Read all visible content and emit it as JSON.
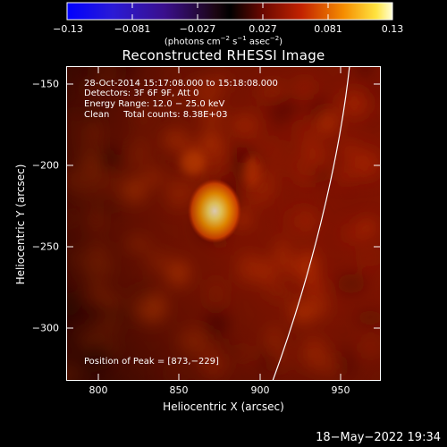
{
  "colorbar": {
    "ticks": [
      "−0.13",
      "−0.081",
      "−0.027",
      "0.027",
      "0.081",
      "0.13"
    ],
    "units_main": "(photons cm",
    "units_sup1": "−2",
    "units_s": " s",
    "units_sup2": "−1",
    "units_asec": " asec",
    "units_sup3": "−2",
    "units_close": ")"
  },
  "title": "Reconstructed RHESSI Image",
  "info": {
    "line1": "28-Oct-2014 15:17:08.000 to 15:18:08.000",
    "line2": "Detectors: 3F 6F 9F, Att 0",
    "line3": "Energy Range: 12.0 − 25.0 keV",
    "line4_label": "Clean",
    "line4_counts": "Total counts: 8.38E+03",
    "peak": "Position of Peak = [873,−229]"
  },
  "axes": {
    "xlabel": "Heliocentric X (arcsec)",
    "ylabel": "Heliocentric Y (arcsec)",
    "xticks": [
      "800",
      "850",
      "900",
      "950"
    ],
    "yticks": [
      "−150",
      "−200",
      "−250",
      "−300"
    ],
    "xlim": [
      780,
      975
    ],
    "ylim": [
      -330,
      -135
    ]
  },
  "peak": {
    "x": 873,
    "y": -229
  },
  "footer_timestamp": "18−May−2022 19:34"
}
